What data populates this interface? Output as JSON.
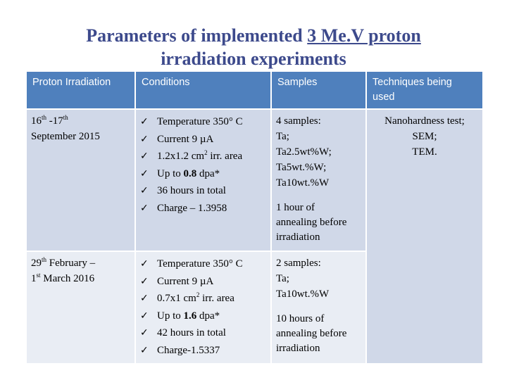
{
  "title": {
    "part1": "Parameters of implemented",
    "part2": "3 Me.V proton",
    "line2": "irradiation experiments"
  },
  "table": {
    "headers": [
      "Proton Irradiation",
      "Conditions",
      "Samples",
      "Techniques being used"
    ],
    "rows": [
      {
        "date": {
          "d1": "16",
          "s1": "th",
          "sep": " -17",
          "s2": "th",
          "line2": "September 2015"
        },
        "conditions": [
          "Temperature 350° C",
          "Current 9 µA",
          "1.2x1.2 cm",
          "Up to ",
          "36 hours in total",
          "Charge – 1.3958"
        ],
        "condition_extras": {
          "area_sup": "2",
          "area_tail": " irr. area",
          "dpa_bold": "0.8",
          "dpa_tail": " dpa*"
        },
        "samples": [
          "4 samples:",
          "Ta;",
          "Ta2.5wt%W;",
          "Ta5wt.%W;",
          "Ta10wt.%W"
        ],
        "annealing": [
          "1 hour of",
          "annealing before",
          "irradiation"
        ]
      },
      {
        "date": {
          "d1": "29",
          "s1": "th",
          "sep": " February –",
          "d2": "1",
          "s2": "st",
          "tail": " March 2016"
        },
        "conditions": [
          "Temperature 350° C",
          "Current 9 µA",
          "0.7x1 cm",
          "Up to ",
          "42 hours in total",
          "Charge-1.5337"
        ],
        "condition_extras": {
          "area_sup": "2",
          "area_tail": " irr. area",
          "dpa_bold": "1.6",
          "dpa_tail": " dpa*"
        },
        "samples": [
          "2 samples:",
          "Ta;",
          "Ta10wt.%W"
        ],
        "annealing": [
          "10 hours of",
          "annealing before",
          "irradiation"
        ]
      }
    ],
    "techniques": [
      "Nanohardness test;",
      "SEM;",
      "TEM."
    ],
    "check_glyph": "✓"
  },
  "colors": {
    "title": "#3d4a8c",
    "header_bg": "#4f80bd",
    "row_dark": "#d0d8e8",
    "row_light": "#e9edf4"
  }
}
